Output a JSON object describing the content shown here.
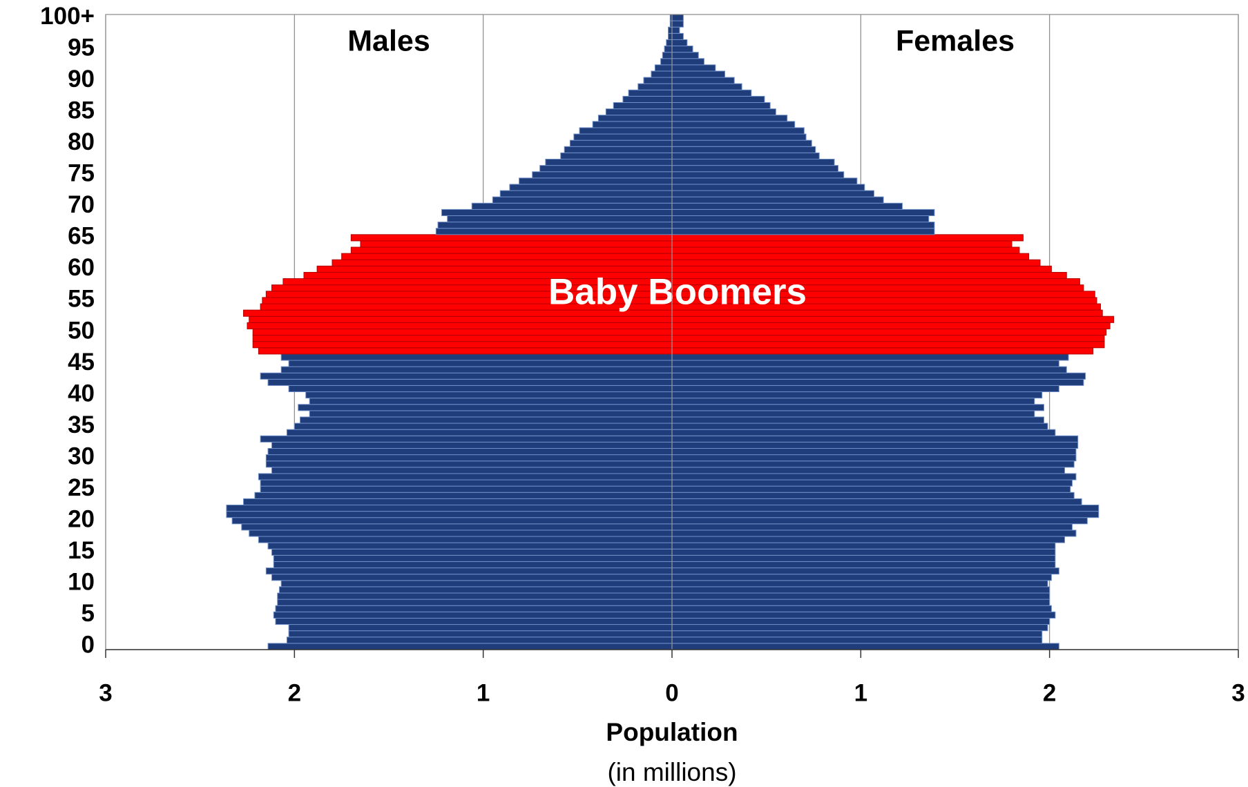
{
  "chart_data": {
    "type": "pyramid",
    "x_label": "Population",
    "x_sublabel": "(in millions)",
    "categories": [
      "0",
      null,
      null,
      null,
      null,
      "5",
      null,
      null,
      null,
      null,
      "10",
      null,
      null,
      null,
      null,
      "15",
      null,
      null,
      null,
      null,
      "20",
      null,
      null,
      null,
      null,
      "25",
      null,
      null,
      null,
      null,
      "30",
      null,
      null,
      null,
      null,
      "35",
      null,
      null,
      null,
      null,
      "40",
      null,
      null,
      null,
      null,
      "45",
      null,
      null,
      null,
      null,
      "50",
      null,
      null,
      null,
      null,
      "55",
      null,
      null,
      null,
      null,
      "60",
      null,
      null,
      null,
      null,
      "65",
      null,
      null,
      null,
      null,
      "70",
      null,
      null,
      null,
      null,
      "75",
      null,
      null,
      null,
      null,
      "80",
      null,
      null,
      null,
      null,
      "85",
      null,
      null,
      null,
      null,
      "90",
      null,
      null,
      null,
      null,
      "95",
      null,
      null,
      null,
      null,
      "100+"
    ],
    "series": [
      {
        "name": "Males",
        "side": "left",
        "color": "#1f3d7a",
        "values": [
          2.14,
          2.04,
          2.03,
          2.03,
          2.1,
          2.11,
          2.1,
          2.09,
          2.09,
          2.08,
          2.07,
          2.12,
          2.15,
          2.11,
          2.11,
          2.12,
          2.14,
          2.19,
          2.24,
          2.28,
          2.33,
          2.36,
          2.36,
          2.27,
          2.21,
          2.18,
          2.18,
          2.19,
          2.12,
          2.15,
          2.15,
          2.14,
          2.12,
          2.18,
          2.04,
          2.0,
          1.97,
          1.92,
          1.98,
          1.92,
          1.94,
          2.03,
          2.14,
          2.18,
          2.07,
          2.03,
          2.07,
          2.19,
          2.22,
          2.22,
          2.22,
          2.25,
          2.24,
          2.27,
          2.18,
          2.17,
          2.15,
          2.12,
          2.06,
          1.95,
          1.88,
          1.8,
          1.75,
          1.7,
          1.65,
          1.7,
          1.25,
          1.24,
          1.19,
          1.22,
          1.06,
          0.95,
          0.91,
          0.86,
          0.81,
          0.74,
          0.7,
          0.67,
          0.59,
          0.57,
          0.54,
          0.52,
          0.49,
          0.42,
          0.39,
          0.35,
          0.31,
          0.26,
          0.23,
          0.18,
          0.15,
          0.11,
          0.09,
          0.06,
          0.05,
          0.04,
          0.03,
          0.02,
          0.02,
          0.01,
          0.01
        ]
      },
      {
        "name": "Females",
        "side": "right",
        "color": "#1f3d7a",
        "values": [
          2.05,
          1.96,
          1.96,
          1.99,
          2.0,
          2.03,
          2.01,
          2.0,
          2.0,
          2.0,
          1.99,
          2.01,
          2.05,
          2.03,
          2.03,
          2.03,
          2.03,
          2.08,
          2.14,
          2.12,
          2.2,
          2.26,
          2.26,
          2.17,
          2.13,
          2.11,
          2.12,
          2.14,
          2.08,
          2.13,
          2.14,
          2.14,
          2.15,
          2.15,
          2.03,
          1.99,
          1.97,
          1.92,
          1.97,
          1.92,
          1.96,
          2.05,
          2.18,
          2.19,
          2.09,
          2.05,
          2.1,
          2.23,
          2.29,
          2.29,
          2.3,
          2.32,
          2.34,
          2.28,
          2.27,
          2.25,
          2.24,
          2.18,
          2.16,
          2.09,
          2.01,
          1.95,
          1.89,
          1.84,
          1.8,
          1.86,
          1.39,
          1.39,
          1.36,
          1.39,
          1.22,
          1.12,
          1.07,
          1.02,
          0.98,
          0.91,
          0.88,
          0.86,
          0.78,
          0.76,
          0.74,
          0.71,
          0.7,
          0.65,
          0.61,
          0.55,
          0.52,
          0.49,
          0.42,
          0.37,
          0.33,
          0.28,
          0.23,
          0.17,
          0.14,
          0.11,
          0.08,
          0.06,
          0.04,
          0.06,
          0.06
        ]
      }
    ],
    "highlight": {
      "label": "Baby Boomers",
      "color": "#ff0000",
      "ages": [
        47,
        65
      ]
    },
    "xlim": [
      -3,
      3
    ],
    "xticks": [
      {
        "value": -3,
        "label": "3"
      },
      {
        "value": -2,
        "label": "2"
      },
      {
        "value": -1,
        "label": "1"
      },
      0,
      {
        "value": 1,
        "label": "1"
      },
      {
        "value": 2,
        "label": "2"
      },
      {
        "value": 3,
        "label": "3"
      }
    ],
    "grid": true
  }
}
